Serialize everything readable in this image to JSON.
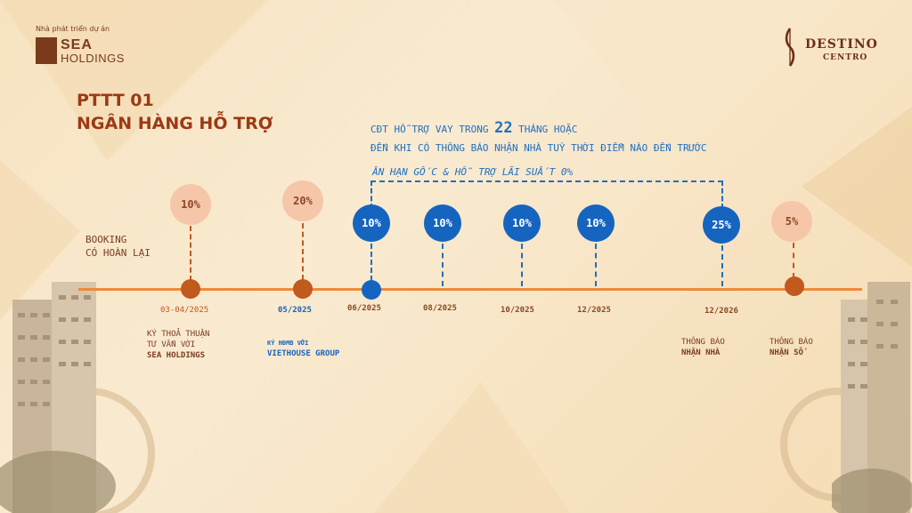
{
  "logo_left": {
    "small": "Nhà phát triển dự án",
    "line1": "SEA",
    "line2": "HOLDINGS"
  },
  "logo_right": {
    "line1": "DESTINO",
    "line2": "CENTRO"
  },
  "title": {
    "line1": "PTTT 01",
    "line2": "NGÂN HÀNG HỖ TRỢ"
  },
  "note": {
    "line1_a": "CĐT HỖ TRỢ VAY TRONG ",
    "line1_num": "22",
    "line1_b": " THÁNG HOẶC",
    "line2": "ĐẾN KHI CÓ  THÔNG BÁO NHẬN NHÀ  TUỲ THỜI ĐIỂM NÀO ĐẾN TRƯỚC",
    "line3": "ÂN HẠN GỐC & HỖ TRỢ LÃI SUẤT 0%"
  },
  "booking": {
    "line1": "BOOKING",
    "line2": "CÓ HOÀN LẠI"
  },
  "milestones": [
    {
      "pct": "10%",
      "date": "03-04/2025",
      "desc1": "KÝ THOẢ THUẬN",
      "desc2": "TƯ VẤN VỚI",
      "desc3": "SEA HOLDINGS"
    },
    {
      "pct": "20%",
      "date": "05/2025",
      "desc1": "KÝ HĐMB VỚI",
      "desc2": "VIETHOUSE GROUP"
    },
    {
      "pct": "10%",
      "date": "06/2025"
    },
    {
      "pct": "10%",
      "date": "08/2025"
    },
    {
      "pct": "10%",
      "date": "10/2025"
    },
    {
      "pct": "10%",
      "date": "12/2025"
    },
    {
      "pct": "25%",
      "date": "12/2026",
      "desc1": "THÔNG BÁO",
      "desc2": "NHẬN NHÀ"
    },
    {
      "pct": "5%",
      "desc1": "THÔNG BÁO",
      "desc2": "NHẬN SỔ"
    }
  ]
}
